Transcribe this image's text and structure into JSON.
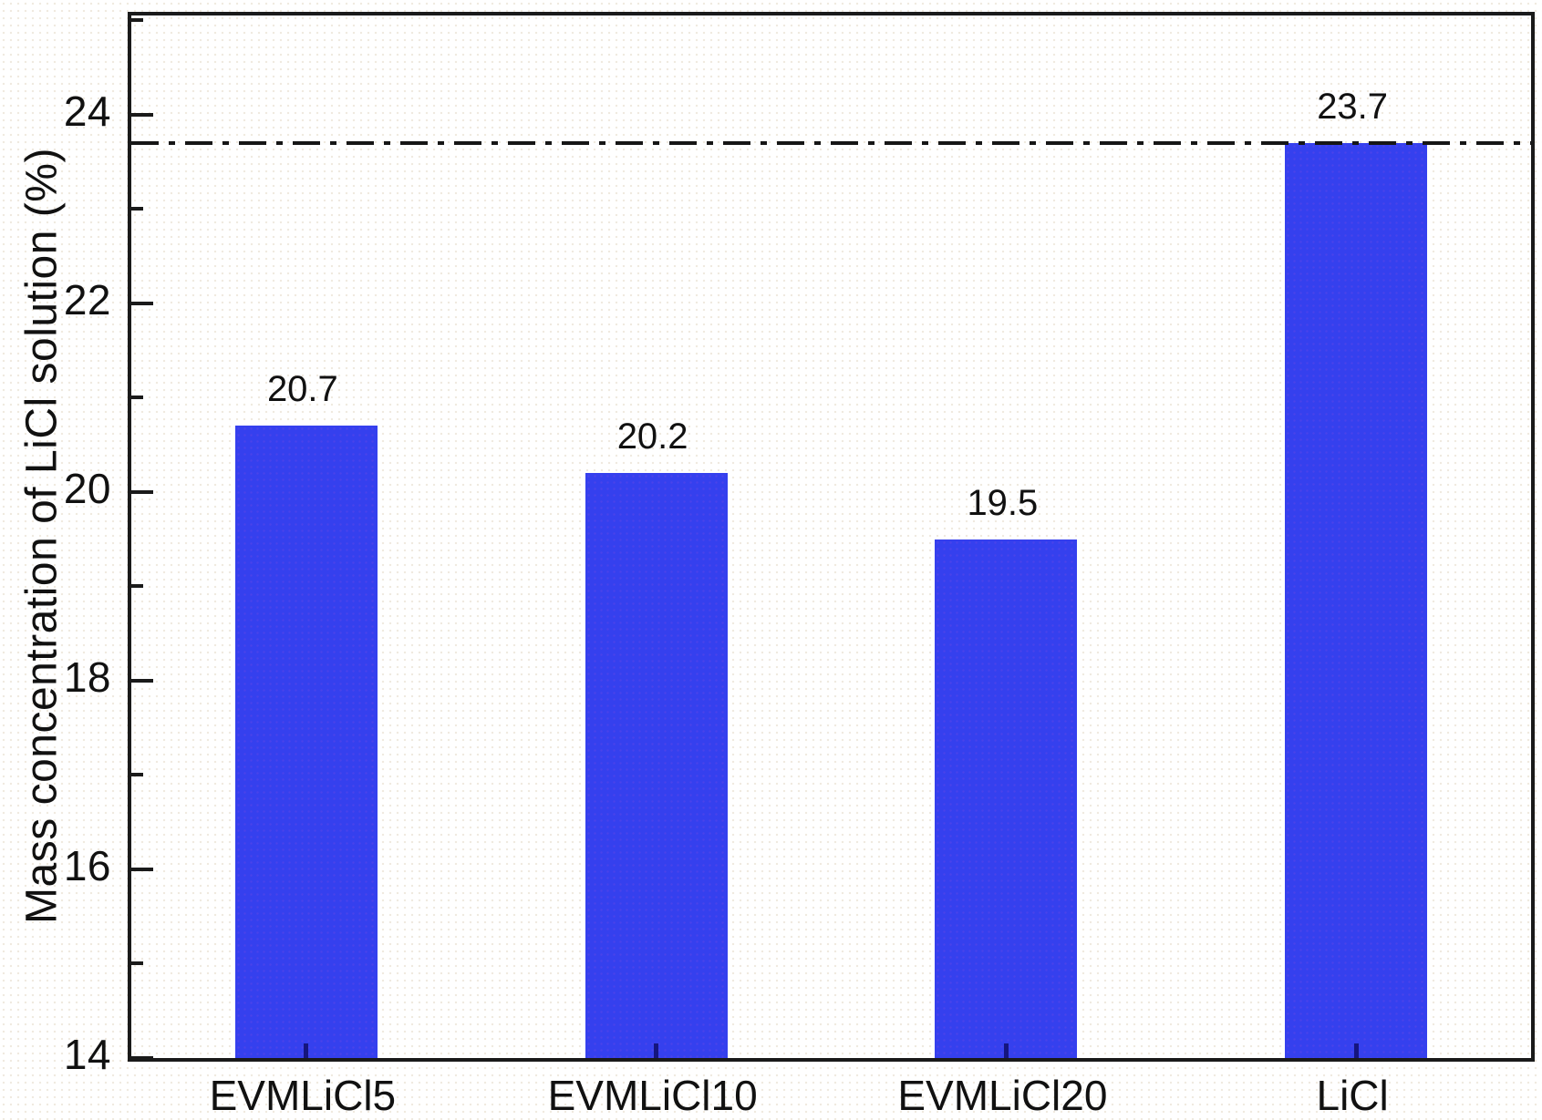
{
  "figure": {
    "background_color": "#ffffff",
    "plot_border_color": "#1a1a1a",
    "text_color": "#111111"
  },
  "chart_data": {
    "type": "bar",
    "title": "",
    "categories": [
      "EVMLiCl5",
      "EVMLiCl10",
      "EVMLiCl20",
      "LiCl"
    ],
    "values": [
      20.7,
      20.2,
      19.5,
      23.7
    ],
    "value_labels": [
      "20.7",
      "20.2",
      "19.5",
      "23.7"
    ],
    "xlabel": "",
    "ylabel": "Mass concentration of LiCl solution (%)",
    "ylim": [
      14,
      25.05
    ],
    "yticks_major": [
      14,
      16,
      18,
      20,
      22,
      24
    ],
    "yticks_minor": [
      15,
      17,
      19,
      21,
      23,
      25
    ],
    "tick_direction": "in",
    "grid": "off",
    "legend": "none",
    "bar_color": "#3540ee",
    "reference_line": {
      "value": 23.7,
      "style": "dash-dot",
      "color": "#161616"
    }
  }
}
